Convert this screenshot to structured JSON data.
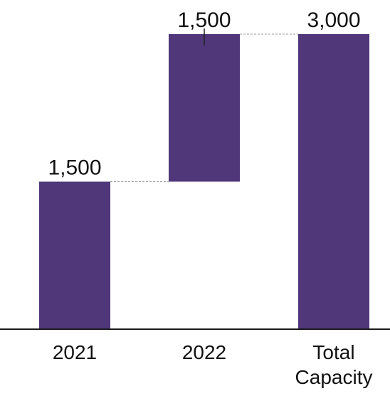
{
  "chart_data": {
    "type": "bar",
    "subtype": "waterfall",
    "title": "",
    "xlabel": "",
    "ylabel": "",
    "categories": [
      "2021",
      "2022",
      "Total Capacity"
    ],
    "category_lines": [
      [
        "2021"
      ],
      [
        "2022"
      ],
      [
        "Total",
        "Capacity"
      ]
    ],
    "bars": [
      {
        "category": "2021",
        "base": 0,
        "value": 1500,
        "label": "1,500"
      },
      {
        "category": "2022",
        "base": 1500,
        "value": 1500,
        "label": "1,500"
      },
      {
        "category": "Total Capacity",
        "base": 0,
        "value": 3000,
        "label": "3,000"
      }
    ],
    "ylim": [
      0,
      3000
    ],
    "grid": false,
    "legend": "none",
    "connector_lines": true,
    "colors": {
      "bar": "#4f3779",
      "axis": "#1a1a1a",
      "connector": "#9b9b9b"
    }
  }
}
